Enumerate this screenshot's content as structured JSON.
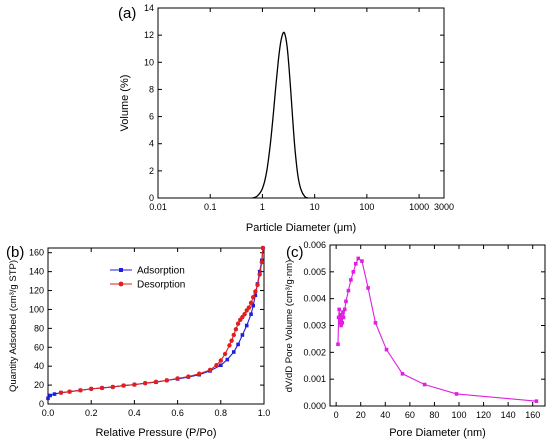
{
  "chart_data": [
    {
      "type": "line",
      "panel_label": "(a)",
      "xlabel": "Particle Diameter (μm)",
      "ylabel": "Volume (%)",
      "xscale": "log",
      "xlim": [
        0.01,
        3000
      ],
      "ylim": [
        0,
        14
      ],
      "xticks": [
        0.01,
        0.1,
        1,
        10,
        100,
        1000,
        3000
      ],
      "xtick_labels": [
        "0.01",
        "0.1",
        "1",
        "10",
        "100",
        "1000",
        "3000"
      ],
      "yticks": [
        0,
        2,
        4,
        6,
        8,
        10,
        12,
        14
      ],
      "color": "#000000",
      "series": [
        {
          "x": [
            0.65,
            0.8,
            1.0,
            1.2,
            1.4,
            1.6,
            1.8,
            2.0,
            2.2,
            2.4,
            2.6,
            2.8,
            3.0,
            3.2,
            3.5,
            3.8,
            4.2,
            4.8,
            5.5,
            6.5,
            7.5
          ],
          "y": [
            0,
            0.15,
            0.7,
            1.9,
            3.8,
            6.0,
            8.2,
            10.0,
            11.3,
            12.0,
            12.2,
            11.8,
            11.0,
            9.8,
            7.8,
            5.8,
            3.6,
            1.6,
            0.6,
            0.1,
            0
          ]
        }
      ]
    },
    {
      "type": "line",
      "panel_label": "(b)",
      "xlabel": "Relative Pressure (P/Po)",
      "ylabel": "Quantity Adsorbed (cm³/g STP)",
      "xlim": [
        0,
        1.0
      ],
      "ylim": [
        0,
        165
      ],
      "xticks": [
        0.0,
        0.2,
        0.4,
        0.6,
        0.8,
        1.0
      ],
      "xtick_labels": [
        "0.0",
        "0.2",
        "0.4",
        "0.6",
        "0.8",
        "1.0"
      ],
      "yticks": [
        0,
        20,
        40,
        60,
        80,
        100,
        120,
        140,
        160
      ],
      "legend_position": "top-left",
      "series": [
        {
          "name": "Adsorption",
          "color": "#1f1fe0",
          "x": [
            0.0,
            0.01,
            0.03,
            0.06,
            0.1,
            0.15,
            0.2,
            0.25,
            0.3,
            0.35,
            0.4,
            0.45,
            0.5,
            0.55,
            0.6,
            0.65,
            0.7,
            0.75,
            0.8,
            0.83,
            0.86,
            0.88,
            0.9,
            0.92,
            0.94,
            0.95,
            0.96,
            0.97,
            0.98,
            0.99,
            0.995
          ],
          "y": [
            6,
            9,
            10.5,
            12,
            13,
            14.5,
            16,
            17,
            18,
            19.5,
            20.5,
            22,
            23,
            25,
            26.5,
            28.5,
            31,
            35,
            41,
            47,
            55,
            63,
            73,
            83,
            95,
            104,
            115,
            127,
            140,
            152,
            165
          ]
        },
        {
          "name": "Desorption",
          "color": "#e01f1f",
          "x": [
            0.995,
            0.99,
            0.98,
            0.97,
            0.96,
            0.95,
            0.94,
            0.93,
            0.92,
            0.91,
            0.9,
            0.89,
            0.88,
            0.87,
            0.86,
            0.85,
            0.84,
            0.82,
            0.8,
            0.78,
            0.75,
            0.7,
            0.65,
            0.6,
            0.55,
            0.5,
            0.45,
            0.4,
            0.35,
            0.3,
            0.25,
            0.2,
            0.15,
            0.1,
            0.06
          ],
          "y": [
            165,
            150,
            137,
            126,
            119,
            113,
            107,
            102,
            99,
            95,
            92,
            89,
            85,
            79,
            73,
            67,
            62,
            53,
            46,
            41,
            36,
            32,
            29,
            27,
            25,
            23.5,
            22,
            20.5,
            19.5,
            18,
            17,
            16,
            14.5,
            13,
            12
          ]
        }
      ]
    },
    {
      "type": "line",
      "panel_label": "(c)",
      "xlabel": "Pore Diameter (nm)",
      "ylabel": "dV/dD Pore Volume (cm³/g·nm)",
      "xlim": [
        -5,
        170
      ],
      "ylim": [
        0,
        0.006
      ],
      "xticks": [
        0,
        20,
        40,
        60,
        80,
        100,
        120,
        140,
        160
      ],
      "xtick_labels": [
        "0",
        "20",
        "40",
        "60",
        "80",
        "100",
        "120",
        "140",
        "160"
      ],
      "yticks": [
        0,
        0.001,
        0.002,
        0.003,
        0.004,
        0.005,
        0.006
      ],
      "ytick_labels": [
        "0.000",
        "0.001",
        "0.002",
        "0.003",
        "0.004",
        "0.005",
        "0.006"
      ],
      "color": "#e020e0",
      "series": [
        {
          "x": [
            1.5,
            2,
            2.5,
            3,
            3.5,
            4,
            4.5,
            5,
            5.5,
            6,
            7,
            8,
            10,
            12,
            14,
            16,
            18,
            21,
            26,
            32,
            41,
            54,
            72,
            98,
            163
          ],
          "y": [
            0.0023,
            0.0033,
            0.0036,
            0.0031,
            0.0034,
            0.003,
            0.0033,
            0.0031,
            0.0035,
            0.0033,
            0.0036,
            0.0039,
            0.0043,
            0.0047,
            0.005,
            0.0053,
            0.0055,
            0.0054,
            0.0044,
            0.0031,
            0.0021,
            0.0012,
            0.0008,
            0.00045,
            0.00018
          ]
        }
      ]
    }
  ]
}
